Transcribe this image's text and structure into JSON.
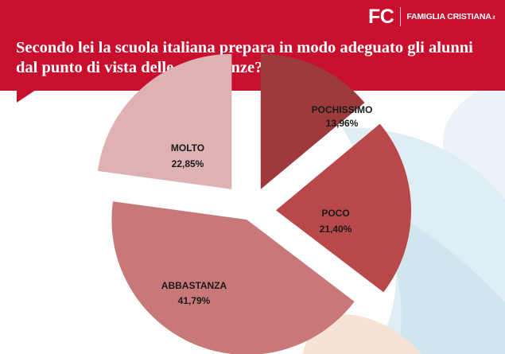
{
  "header": {
    "logo_mark": "FC",
    "logo_brand": "FAMIGLIA CRISTIANA",
    "logo_tld": ".it",
    "brand_color": "#c8102e"
  },
  "chart_data": {
    "type": "pie",
    "title": "Secondo lei la scuola italiana prepara in modo adeguato gli alunni dal punto di vista delle conoscenze?",
    "exploded": true,
    "slices": [
      {
        "label": "POCHISSIMO",
        "value": 13.96,
        "value_label": "13,96%",
        "color": "#9c3a3c"
      },
      {
        "label": "POCO",
        "value": 21.4,
        "value_label": "21,40%",
        "color": "#b9484a"
      },
      {
        "label": "ABBASTANZA",
        "value": 41.79,
        "value_label": "41,79%",
        "color": "#c9787a"
      },
      {
        "label": "MOLTO",
        "value": 22.85,
        "value_label": "22,85%",
        "color": "#deb1b2"
      }
    ]
  }
}
